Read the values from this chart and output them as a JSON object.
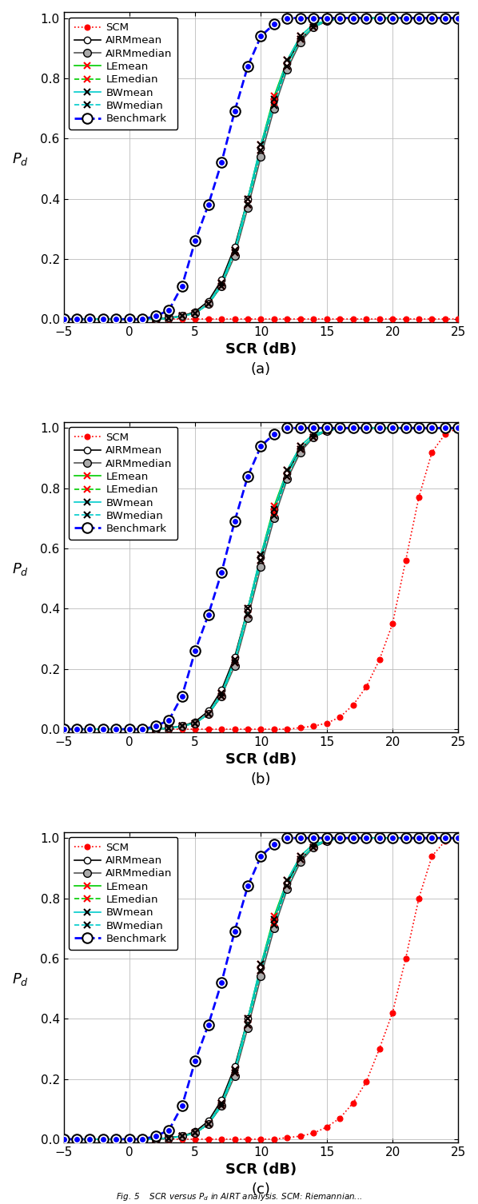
{
  "scr": [
    -5,
    -4,
    -3,
    -2,
    -1,
    0,
    1,
    2,
    3,
    4,
    5,
    6,
    7,
    8,
    9,
    10,
    11,
    12,
    13,
    14,
    15,
    16,
    17,
    18,
    19,
    20,
    21,
    22,
    23,
    24,
    25
  ],
  "panels": [
    {
      "label": "(a)",
      "SCM": [
        0.0,
        0.0,
        0.0,
        0.0,
        0.0,
        0.0,
        0.0,
        0.0,
        0.0,
        0.0,
        0.0,
        0.0,
        0.0,
        0.0,
        0.0,
        0.0,
        0.0,
        0.0,
        0.0,
        0.0,
        0.0,
        0.0,
        0.0,
        0.0,
        0.0,
        0.0,
        0.0,
        0.0,
        0.0,
        0.0,
        0.0
      ],
      "AIRMmean": [
        0.0,
        0.0,
        0.0,
        0.0,
        0.0,
        0.0,
        0.0,
        0.0,
        0.005,
        0.01,
        0.025,
        0.06,
        0.13,
        0.24,
        0.4,
        0.57,
        0.73,
        0.85,
        0.93,
        0.97,
        0.99,
        1.0,
        1.0,
        1.0,
        1.0,
        1.0,
        1.0,
        1.0,
        1.0,
        1.0,
        1.0
      ],
      "AIRMmedian": [
        0.0,
        0.0,
        0.0,
        0.0,
        0.0,
        0.0,
        0.0,
        0.0,
        0.005,
        0.01,
        0.02,
        0.05,
        0.11,
        0.21,
        0.37,
        0.54,
        0.7,
        0.83,
        0.92,
        0.97,
        0.99,
        1.0,
        1.0,
        1.0,
        1.0,
        1.0,
        1.0,
        1.0,
        1.0,
        1.0,
        1.0
      ],
      "LEmean": [
        0.0,
        0.0,
        0.0,
        0.0,
        0.0,
        0.0,
        0.0,
        0.0,
        0.003,
        0.01,
        0.02,
        0.05,
        0.12,
        0.23,
        0.4,
        0.58,
        0.74,
        0.86,
        0.94,
        0.98,
        0.99,
        1.0,
        1.0,
        1.0,
        1.0,
        1.0,
        1.0,
        1.0,
        1.0,
        1.0,
        1.0
      ],
      "LEmedian": [
        0.0,
        0.0,
        0.0,
        0.0,
        0.0,
        0.0,
        0.0,
        0.0,
        0.003,
        0.01,
        0.02,
        0.05,
        0.11,
        0.22,
        0.38,
        0.56,
        0.72,
        0.84,
        0.93,
        0.97,
        0.99,
        1.0,
        1.0,
        1.0,
        1.0,
        1.0,
        1.0,
        1.0,
        1.0,
        1.0,
        1.0
      ],
      "BWmean": [
        0.0,
        0.0,
        0.0,
        0.0,
        0.0,
        0.0,
        0.0,
        0.0,
        0.003,
        0.01,
        0.02,
        0.05,
        0.12,
        0.23,
        0.4,
        0.58,
        0.73,
        0.86,
        0.94,
        0.98,
        0.99,
        1.0,
        1.0,
        1.0,
        1.0,
        1.0,
        1.0,
        1.0,
        1.0,
        1.0,
        1.0
      ],
      "BWmedian": [
        0.0,
        0.0,
        0.0,
        0.0,
        0.0,
        0.0,
        0.0,
        0.0,
        0.003,
        0.01,
        0.02,
        0.05,
        0.11,
        0.22,
        0.38,
        0.56,
        0.71,
        0.84,
        0.93,
        0.97,
        0.99,
        1.0,
        1.0,
        1.0,
        1.0,
        1.0,
        1.0,
        1.0,
        1.0,
        1.0,
        1.0
      ],
      "Benchmark": [
        0.0,
        0.0,
        0.0,
        0.0,
        0.0,
        0.0,
        0.0,
        0.01,
        0.03,
        0.11,
        0.26,
        0.38,
        0.52,
        0.69,
        0.84,
        0.94,
        0.98,
        1.0,
        1.0,
        1.0,
        1.0,
        1.0,
        1.0,
        1.0,
        1.0,
        1.0,
        1.0,
        1.0,
        1.0,
        1.0,
        1.0
      ]
    },
    {
      "label": "(b)",
      "SCM": [
        0.0,
        0.0,
        0.0,
        0.0,
        0.0,
        0.0,
        0.0,
        0.0,
        0.0,
        0.0,
        0.0,
        0.0,
        0.0,
        0.0,
        0.0,
        0.0,
        0.0,
        0.0,
        0.005,
        0.01,
        0.02,
        0.04,
        0.08,
        0.14,
        0.23,
        0.35,
        0.56,
        0.77,
        0.92,
        0.98,
        1.0
      ],
      "AIRMmean": [
        0.0,
        0.0,
        0.0,
        0.0,
        0.0,
        0.0,
        0.0,
        0.0,
        0.005,
        0.01,
        0.025,
        0.06,
        0.13,
        0.24,
        0.4,
        0.57,
        0.73,
        0.85,
        0.93,
        0.97,
        0.99,
        1.0,
        1.0,
        1.0,
        1.0,
        1.0,
        1.0,
        1.0,
        1.0,
        1.0,
        1.0
      ],
      "AIRMmedian": [
        0.0,
        0.0,
        0.0,
        0.0,
        0.0,
        0.0,
        0.0,
        0.0,
        0.005,
        0.01,
        0.02,
        0.05,
        0.11,
        0.21,
        0.37,
        0.54,
        0.7,
        0.83,
        0.92,
        0.97,
        0.99,
        1.0,
        1.0,
        1.0,
        1.0,
        1.0,
        1.0,
        1.0,
        1.0,
        1.0,
        1.0
      ],
      "LEmean": [
        0.0,
        0.0,
        0.0,
        0.0,
        0.0,
        0.0,
        0.0,
        0.0,
        0.003,
        0.01,
        0.02,
        0.05,
        0.12,
        0.23,
        0.4,
        0.58,
        0.74,
        0.86,
        0.94,
        0.98,
        0.99,
        1.0,
        1.0,
        1.0,
        1.0,
        1.0,
        1.0,
        1.0,
        1.0,
        1.0,
        1.0
      ],
      "LEmedian": [
        0.0,
        0.0,
        0.0,
        0.0,
        0.0,
        0.0,
        0.0,
        0.0,
        0.003,
        0.01,
        0.02,
        0.05,
        0.11,
        0.22,
        0.38,
        0.56,
        0.72,
        0.84,
        0.93,
        0.97,
        0.99,
        1.0,
        1.0,
        1.0,
        1.0,
        1.0,
        1.0,
        1.0,
        1.0,
        1.0,
        1.0
      ],
      "BWmean": [
        0.0,
        0.0,
        0.0,
        0.0,
        0.0,
        0.0,
        0.0,
        0.0,
        0.003,
        0.01,
        0.02,
        0.05,
        0.12,
        0.23,
        0.4,
        0.58,
        0.73,
        0.86,
        0.94,
        0.98,
        0.99,
        1.0,
        1.0,
        1.0,
        1.0,
        1.0,
        1.0,
        1.0,
        1.0,
        1.0,
        1.0
      ],
      "BWmedian": [
        0.0,
        0.0,
        0.0,
        0.0,
        0.0,
        0.0,
        0.0,
        0.0,
        0.003,
        0.01,
        0.02,
        0.05,
        0.11,
        0.22,
        0.38,
        0.56,
        0.71,
        0.84,
        0.93,
        0.97,
        0.99,
        1.0,
        1.0,
        1.0,
        1.0,
        1.0,
        1.0,
        1.0,
        1.0,
        1.0,
        1.0
      ],
      "Benchmark": [
        0.0,
        0.0,
        0.0,
        0.0,
        0.0,
        0.0,
        0.0,
        0.01,
        0.03,
        0.11,
        0.26,
        0.38,
        0.52,
        0.69,
        0.84,
        0.94,
        0.98,
        1.0,
        1.0,
        1.0,
        1.0,
        1.0,
        1.0,
        1.0,
        1.0,
        1.0,
        1.0,
        1.0,
        1.0,
        1.0,
        1.0
      ]
    },
    {
      "label": "(c)",
      "SCM": [
        0.0,
        0.0,
        0.0,
        0.0,
        0.0,
        0.0,
        0.0,
        0.0,
        0.0,
        0.0,
        0.0,
        0.0,
        0.0,
        0.0,
        0.0,
        0.0,
        0.0,
        0.005,
        0.01,
        0.02,
        0.04,
        0.07,
        0.12,
        0.19,
        0.3,
        0.42,
        0.6,
        0.8,
        0.94,
        0.99,
        1.0
      ],
      "AIRMmean": [
        0.0,
        0.0,
        0.0,
        0.0,
        0.0,
        0.0,
        0.0,
        0.0,
        0.005,
        0.01,
        0.025,
        0.06,
        0.13,
        0.24,
        0.4,
        0.57,
        0.73,
        0.85,
        0.93,
        0.97,
        0.99,
        1.0,
        1.0,
        1.0,
        1.0,
        1.0,
        1.0,
        1.0,
        1.0,
        1.0,
        1.0
      ],
      "AIRMmedian": [
        0.0,
        0.0,
        0.0,
        0.0,
        0.0,
        0.0,
        0.0,
        0.0,
        0.005,
        0.01,
        0.02,
        0.05,
        0.11,
        0.21,
        0.37,
        0.54,
        0.7,
        0.83,
        0.92,
        0.97,
        0.99,
        1.0,
        1.0,
        1.0,
        1.0,
        1.0,
        1.0,
        1.0,
        1.0,
        1.0,
        1.0
      ],
      "LEmean": [
        0.0,
        0.0,
        0.0,
        0.0,
        0.0,
        0.0,
        0.0,
        0.0,
        0.003,
        0.01,
        0.02,
        0.05,
        0.12,
        0.23,
        0.4,
        0.58,
        0.74,
        0.86,
        0.94,
        0.98,
        0.99,
        1.0,
        1.0,
        1.0,
        1.0,
        1.0,
        1.0,
        1.0,
        1.0,
        1.0,
        1.0
      ],
      "LEmedian": [
        0.0,
        0.0,
        0.0,
        0.0,
        0.0,
        0.0,
        0.0,
        0.0,
        0.003,
        0.01,
        0.02,
        0.05,
        0.11,
        0.22,
        0.38,
        0.56,
        0.72,
        0.84,
        0.93,
        0.97,
        0.99,
        1.0,
        1.0,
        1.0,
        1.0,
        1.0,
        1.0,
        1.0,
        1.0,
        1.0,
        1.0
      ],
      "BWmean": [
        0.0,
        0.0,
        0.0,
        0.0,
        0.0,
        0.0,
        0.0,
        0.0,
        0.003,
        0.01,
        0.02,
        0.05,
        0.12,
        0.23,
        0.4,
        0.58,
        0.73,
        0.86,
        0.94,
        0.98,
        0.99,
        1.0,
        1.0,
        1.0,
        1.0,
        1.0,
        1.0,
        1.0,
        1.0,
        1.0,
        1.0
      ],
      "BWmedian": [
        0.0,
        0.0,
        0.0,
        0.0,
        0.0,
        0.0,
        0.0,
        0.0,
        0.003,
        0.01,
        0.02,
        0.05,
        0.11,
        0.22,
        0.38,
        0.56,
        0.71,
        0.84,
        0.93,
        0.97,
        0.99,
        1.0,
        1.0,
        1.0,
        1.0,
        1.0,
        1.0,
        1.0,
        1.0,
        1.0,
        1.0
      ],
      "Benchmark": [
        0.0,
        0.0,
        0.0,
        0.0,
        0.0,
        0.0,
        0.0,
        0.01,
        0.03,
        0.11,
        0.26,
        0.38,
        0.52,
        0.69,
        0.84,
        0.94,
        0.98,
        1.0,
        1.0,
        1.0,
        1.0,
        1.0,
        1.0,
        1.0,
        1.0,
        1.0,
        1.0,
        1.0,
        1.0,
        1.0,
        1.0
      ]
    }
  ],
  "xlim": [
    -5,
    25
  ],
  "ylim": [
    0,
    1
  ],
  "yticks": [
    0,
    0.2,
    0.4,
    0.6,
    0.8,
    1.0
  ],
  "xticks": [
    -5,
    0,
    5,
    10,
    15,
    20,
    25
  ],
  "panel_labels": [
    "(a)",
    "(b)",
    "(c)"
  ],
  "caption": "Fig. 5    SCR versus P_d in AIRT analysis. SCM: Riemannian..."
}
